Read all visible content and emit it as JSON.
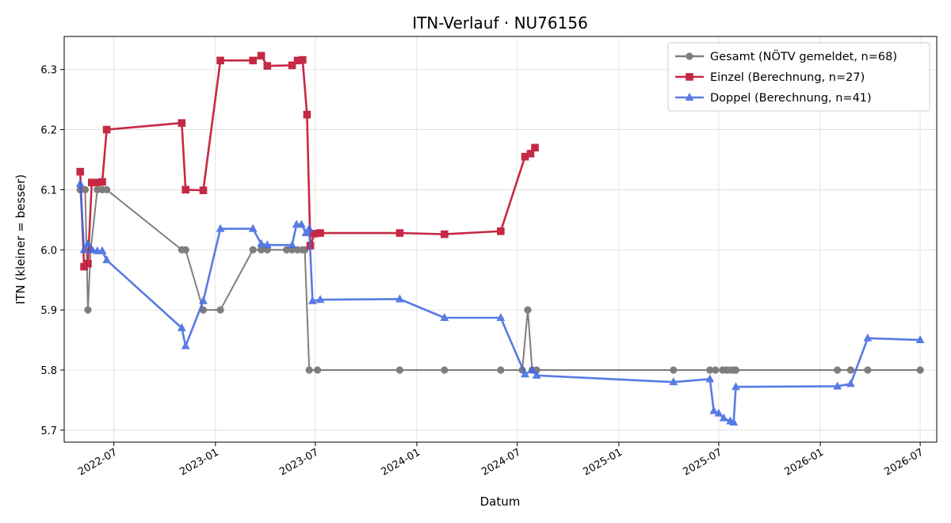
{
  "chart_data": {
    "type": "line",
    "title": "ITN-Verlauf · NU76156",
    "xlabel": "Datum",
    "ylabel": "ITN  (kleiner = besser)",
    "x_axis_type": "date",
    "xlim": [
      "2022-04-02",
      "2026-07-31"
    ],
    "ylim": [
      5.68,
      6.355
    ],
    "x_ticks": [
      "2022-07",
      "2023-01",
      "2023-07",
      "2024-01",
      "2024-07",
      "2025-01",
      "2025-07",
      "2026-01",
      "2026-07"
    ],
    "y_ticks": [
      "5.7",
      "5.8",
      "5.9",
      "6.0",
      "6.1",
      "6.2",
      "6.3"
    ],
    "grid": true,
    "legend_position": "top-right",
    "series": [
      {
        "name": "Gesamt (NÖTV gemeldet, n=68)",
        "color": "#555555",
        "marker": "circle",
        "points": [
          [
            "2022-05-01",
            6.1
          ],
          [
            "2022-05-10",
            6.1
          ],
          [
            "2022-05-15",
            5.9
          ],
          [
            "2022-05-20",
            6.0
          ],
          [
            "2022-06-01",
            6.1
          ],
          [
            "2022-06-10",
            6.1
          ],
          [
            "2022-06-18",
            6.1
          ],
          [
            "2022-11-01",
            6.0
          ],
          [
            "2022-11-08",
            6.0
          ],
          [
            "2022-12-10",
            5.9
          ],
          [
            "2023-01-10",
            5.9
          ],
          [
            "2023-03-10",
            6.0
          ],
          [
            "2023-03-25",
            6.0
          ],
          [
            "2023-04-05",
            6.0
          ],
          [
            "2023-05-10",
            6.0
          ],
          [
            "2023-05-20",
            6.0
          ],
          [
            "2023-05-30",
            6.0
          ],
          [
            "2023-06-08",
            6.0
          ],
          [
            "2023-06-12",
            6.0
          ],
          [
            "2023-06-20",
            5.8
          ],
          [
            "2023-07-05",
            5.8
          ],
          [
            "2023-12-01",
            5.8
          ],
          [
            "2024-02-20",
            5.8
          ],
          [
            "2024-06-01",
            5.8
          ],
          [
            "2024-07-10",
            5.8
          ],
          [
            "2024-07-20",
            5.9
          ],
          [
            "2024-07-28",
            5.8
          ],
          [
            "2024-08-05",
            5.8
          ],
          [
            "2025-04-10",
            5.8
          ],
          [
            "2025-06-15",
            5.8
          ],
          [
            "2025-06-25",
            5.8
          ],
          [
            "2025-07-08",
            5.8
          ],
          [
            "2025-07-15",
            5.8
          ],
          [
            "2025-07-22",
            5.8
          ],
          [
            "2025-07-28",
            5.8
          ],
          [
            "2025-08-01",
            5.8
          ],
          [
            "2026-02-01",
            5.8
          ],
          [
            "2026-02-25",
            5.8
          ],
          [
            "2026-03-28",
            5.8
          ],
          [
            "2026-07-01",
            5.8
          ]
        ]
      },
      {
        "name": "Einzel (Berechnung, n=27)",
        "color": "#c41e3a",
        "marker": "square",
        "points": [
          [
            "2022-05-01",
            6.13
          ],
          [
            "2022-05-08",
            5.972
          ],
          [
            "2022-05-15",
            5.977
          ],
          [
            "2022-05-22",
            6.112
          ],
          [
            "2022-06-01",
            6.112
          ],
          [
            "2022-06-10",
            6.113
          ],
          [
            "2022-06-18",
            6.2
          ],
          [
            "2022-11-01",
            6.211
          ],
          [
            "2022-11-08",
            6.1
          ],
          [
            "2022-12-10",
            6.099
          ],
          [
            "2023-01-10",
            6.315
          ],
          [
            "2023-03-10",
            6.315
          ],
          [
            "2023-03-25",
            6.323
          ],
          [
            "2023-04-05",
            6.306
          ],
          [
            "2023-05-20",
            6.307
          ],
          [
            "2023-05-30",
            6.315
          ],
          [
            "2023-06-08",
            6.316
          ],
          [
            "2023-06-16",
            6.225
          ],
          [
            "2023-06-22",
            6.007
          ],
          [
            "2023-06-30",
            6.027
          ],
          [
            "2023-07-10",
            6.028
          ],
          [
            "2023-12-01",
            6.028
          ],
          [
            "2024-02-20",
            6.026
          ],
          [
            "2024-06-01",
            6.031
          ],
          [
            "2024-07-15",
            6.155
          ],
          [
            "2024-07-25",
            6.16
          ],
          [
            "2024-08-02",
            6.17
          ]
        ]
      },
      {
        "name": "Doppel (Berechnung, n=41)",
        "color": "#4169e1",
        "marker": "triangle",
        "points": [
          [
            "2022-05-01",
            6.11
          ],
          [
            "2022-05-08",
            6.0
          ],
          [
            "2022-05-15",
            6.01
          ],
          [
            "2022-05-22",
            6.0
          ],
          [
            "2022-06-01",
            5.998
          ],
          [
            "2022-06-10",
            5.998
          ],
          [
            "2022-06-18",
            5.983
          ],
          [
            "2022-11-01",
            5.87
          ],
          [
            "2022-11-08",
            5.84
          ],
          [
            "2022-12-10",
            5.915
          ],
          [
            "2023-01-10",
            6.035
          ],
          [
            "2023-03-10",
            6.035
          ],
          [
            "2023-03-25",
            6.01
          ],
          [
            "2023-04-05",
            6.008
          ],
          [
            "2023-05-20",
            6.008
          ],
          [
            "2023-05-28",
            6.042
          ],
          [
            "2023-06-06",
            6.042
          ],
          [
            "2023-06-14",
            6.028
          ],
          [
            "2023-06-20",
            6.035
          ],
          [
            "2023-06-26",
            5.915
          ],
          [
            "2023-07-10",
            5.917
          ],
          [
            "2023-12-01",
            5.918
          ],
          [
            "2024-02-20",
            5.887
          ],
          [
            "2024-06-01",
            5.887
          ],
          [
            "2024-07-15",
            5.793
          ],
          [
            "2024-07-28",
            5.8
          ],
          [
            "2024-08-05",
            5.791
          ],
          [
            "2025-04-10",
            5.78
          ],
          [
            "2025-06-15",
            5.785
          ],
          [
            "2025-06-22",
            5.732
          ],
          [
            "2025-07-01",
            5.728
          ],
          [
            "2025-07-10",
            5.72
          ],
          [
            "2025-07-22",
            5.715
          ],
          [
            "2025-07-28",
            5.713
          ],
          [
            "2025-08-01",
            5.772
          ],
          [
            "2026-02-01",
            5.773
          ],
          [
            "2026-02-25",
            5.777
          ],
          [
            "2026-03-28",
            5.853
          ],
          [
            "2026-07-01",
            5.85
          ]
        ]
      }
    ]
  }
}
